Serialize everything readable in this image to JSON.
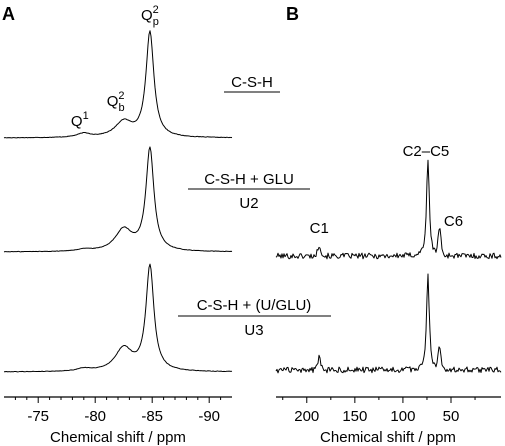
{
  "chart_data": [
    {
      "panel": "A",
      "type": "line",
      "xlabel": "Chemical shift / ppm",
      "xlim": [
        -72,
        -92
      ],
      "ticks": [
        -75,
        -80,
        -85,
        -90
      ],
      "tick_labels": [
        "-75",
        "-80",
        "-85",
        "-90"
      ],
      "peaks": [
        {
          "label": "Q1",
          "base": "Q",
          "sup": "1",
          "sub": "",
          "ppm": -79.0
        },
        {
          "label": "Q2b",
          "base": "Q",
          "sup": "2",
          "sub": "b",
          "ppm": -82.5
        },
        {
          "label": "Q2p",
          "base": "Q",
          "sup": "2",
          "sub": "p",
          "ppm": -84.8
        }
      ],
      "series": [
        {
          "sample": "C-S-H",
          "sample_line2": "",
          "peak_heights": {
            "Q1": 0.03,
            "Q2b": 0.12,
            "Q2p": 0.82
          }
        },
        {
          "sample": "C-S-H + GLU",
          "sample_line2": "U2",
          "peak_heights": {
            "Q1": 0.015,
            "Q2b": 0.17,
            "Q2p": 0.8
          }
        },
        {
          "sample": "C-S-H + (U/GLU)",
          "sample_line2": "U3",
          "peak_heights": {
            "Q1": 0.02,
            "Q2b": 0.18,
            "Q2p": 0.82
          }
        }
      ]
    },
    {
      "panel": "B",
      "type": "line",
      "xlabel": "Chemical shift / ppm",
      "xlim": [
        232,
        -2
      ],
      "ticks": [
        200,
        150,
        100,
        50
      ],
      "tick_labels": [
        "200",
        "150",
        "100",
        "50"
      ],
      "peaks": [
        {
          "label": "C1",
          "ppm": 187
        },
        {
          "label": "C2–C5",
          "ppm": 74
        },
        {
          "label": "C6",
          "ppm": 62
        }
      ],
      "series": [
        {
          "name": "U2",
          "peak_heights": {
            "C1": 0.12,
            "C2–C5": 1.0,
            "C6": 0.28
          }
        },
        {
          "name": "U3",
          "peak_heights": {
            "C1": 0.14,
            "C2–C5": 1.0,
            "C6": 0.22
          }
        }
      ]
    }
  ]
}
